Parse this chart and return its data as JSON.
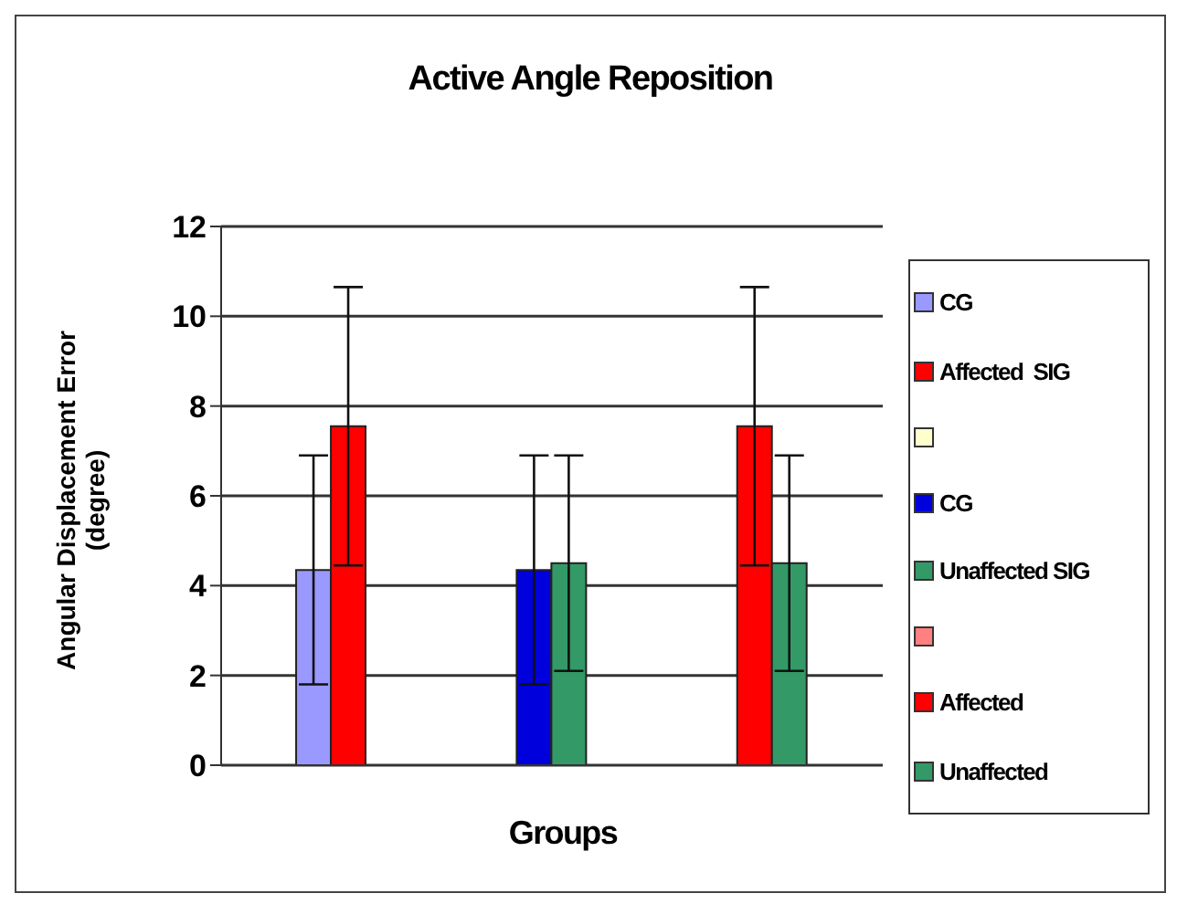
{
  "chart_data": {
    "type": "bar",
    "title": "Active Angle Reposition",
    "xlabel": "Groups",
    "ylabel": "Angular Displacement Error\n(degree)",
    "categories": [
      null,
      null,
      null
    ],
    "series": [
      {
        "name": "CG",
        "color": "#9999ff",
        "values": [
          4.35,
          null,
          null
        ],
        "errors": [
          2.55,
          null,
          null
        ]
      },
      {
        "name": "Affected  SIG",
        "color": "#ff0000",
        "values": [
          7.55,
          null,
          null
        ],
        "errors": [
          3.1,
          null,
          null
        ]
      },
      {
        "color": "#ffffcc",
        "values": [
          null,
          null,
          null
        ]
      },
      {
        "name": "CG",
        "color": "#0000dd",
        "values": [
          null,
          4.35,
          null
        ],
        "errors": [
          null,
          2.55,
          null
        ]
      },
      {
        "name": "Unaffected SIG",
        "color": "#339966",
        "values": [
          null,
          4.5,
          null
        ],
        "errors": [
          null,
          2.4,
          null
        ]
      },
      {
        "color": "#ff8080",
        "values": [
          null,
          null,
          null
        ]
      },
      {
        "name": "Affected",
        "color": "#ff0000",
        "values": [
          null,
          null,
          7.55
        ],
        "errors": [
          null,
          null,
          3.1
        ]
      },
      {
        "name": "Unaffected",
        "color": "#339966",
        "values": [
          null,
          null,
          4.5
        ],
        "errors": [
          null,
          null,
          2.4
        ]
      }
    ],
    "ylim": [
      0,
      12
    ],
    "yticks": [
      0,
      2,
      4,
      6,
      8,
      10,
      12
    ],
    "grid": "y",
    "legend": "right"
  }
}
